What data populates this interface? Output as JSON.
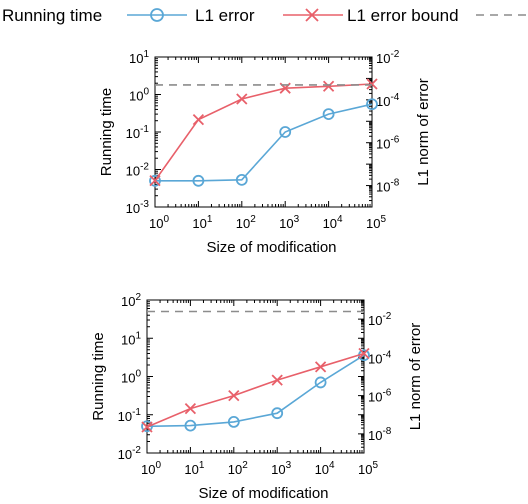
{
  "legend": {
    "items": [
      {
        "label": "Running time",
        "marker": "circle",
        "color": "#5aa7d6",
        "style": "solid"
      },
      {
        "label": "L1 error",
        "marker": "cross",
        "color": "#e8606a",
        "style": "solid"
      },
      {
        "label": "L1 error bound",
        "marker": "none",
        "color": "#8c8c8c",
        "style": "dashed"
      }
    ]
  },
  "colors": {
    "running_time": "#5aa7d6",
    "l1_error": "#e8606a",
    "bound": "#8c8c8c"
  },
  "chart_data": [
    {
      "type": "line",
      "xlabel": "Size of modification",
      "ylabel": "Running time",
      "y2label": "L1 norm of error",
      "xscale": "log",
      "yscale": "log",
      "y2scale": "log",
      "xlim": [
        1,
        100000
      ],
      "ylim": [
        0.001,
        10
      ],
      "y2lim": [
        1e-09,
        0.01
      ],
      "x_ticks": [
        {
          "base": "10",
          "exp": "0"
        },
        {
          "base": "10",
          "exp": "1"
        },
        {
          "base": "10",
          "exp": "2"
        },
        {
          "base": "10",
          "exp": "3"
        },
        {
          "base": "10",
          "exp": "4"
        },
        {
          "base": "10",
          "exp": "5"
        }
      ],
      "y_ticks": [
        {
          "base": "10",
          "exp": "-3"
        },
        {
          "base": "10",
          "exp": "-2"
        },
        {
          "base": "10",
          "exp": "-1"
        },
        {
          "base": "10",
          "exp": "0"
        },
        {
          "base": "10",
          "exp": "1"
        }
      ],
      "y2_ticks": [
        {
          "base": "10",
          "exp": "-8"
        },
        {
          "base": "10",
          "exp": "-6"
        },
        {
          "base": "10",
          "exp": "-4"
        },
        {
          "base": "10",
          "exp": "-2"
        }
      ],
      "x": [
        1,
        10,
        100,
        1000,
        10000,
        100000
      ],
      "series": [
        {
          "name": "Running time",
          "axis": "left",
          "values": [
            0.005,
            0.005,
            0.0053,
            0.1,
            0.3,
            0.55
          ]
        },
        {
          "name": "L1 error",
          "axis": "right",
          "values": [
            1.7e-08,
            1.2e-05,
            0.00011,
            0.00035,
            0.00043,
            0.00055
          ]
        },
        {
          "name": "L1 error bound",
          "axis": "right",
          "values": [
            0.0005,
            0.0005,
            0.0005,
            0.0005,
            0.0005,
            0.0005
          ]
        }
      ]
    },
    {
      "type": "line",
      "xlabel": "Size of modification",
      "ylabel": "Running time",
      "y2label": "L1 norm of error",
      "xscale": "log",
      "yscale": "log",
      "y2scale": "log",
      "xlim": [
        1,
        100000
      ],
      "ylim": [
        0.01,
        100
      ],
      "y2lim": [
        1e-09,
        0.1
      ],
      "x_ticks": [
        {
          "base": "10",
          "exp": "0"
        },
        {
          "base": "10",
          "exp": "1"
        },
        {
          "base": "10",
          "exp": "2"
        },
        {
          "base": "10",
          "exp": "3"
        },
        {
          "base": "10",
          "exp": "4"
        },
        {
          "base": "10",
          "exp": "5"
        }
      ],
      "y_ticks": [
        {
          "base": "10",
          "exp": "-2"
        },
        {
          "base": "10",
          "exp": "-1"
        },
        {
          "base": "10",
          "exp": "0"
        },
        {
          "base": "10",
          "exp": "1"
        },
        {
          "base": "10",
          "exp": "2"
        }
      ],
      "y2_ticks": [
        {
          "base": "10",
          "exp": "-8"
        },
        {
          "base": "10",
          "exp": "-6"
        },
        {
          "base": "10",
          "exp": "-4"
        },
        {
          "base": "10",
          "exp": "-2"
        }
      ],
      "x": [
        1,
        10,
        100,
        1000,
        10000,
        100000
      ],
      "series": [
        {
          "name": "Running time",
          "axis": "left",
          "values": [
            0.05,
            0.052,
            0.065,
            0.11,
            0.7,
            3.6
          ]
        },
        {
          "name": "L1 error",
          "axis": "right",
          "values": [
            2.3e-08,
            2.1e-07,
            1e-06,
            6.5e-06,
            3.2e-05,
            0.00016
          ]
        },
        {
          "name": "L1 error bound",
          "axis": "right",
          "values": [
            0.025,
            0.025,
            0.025,
            0.025,
            0.025,
            0.025
          ]
        }
      ]
    }
  ]
}
